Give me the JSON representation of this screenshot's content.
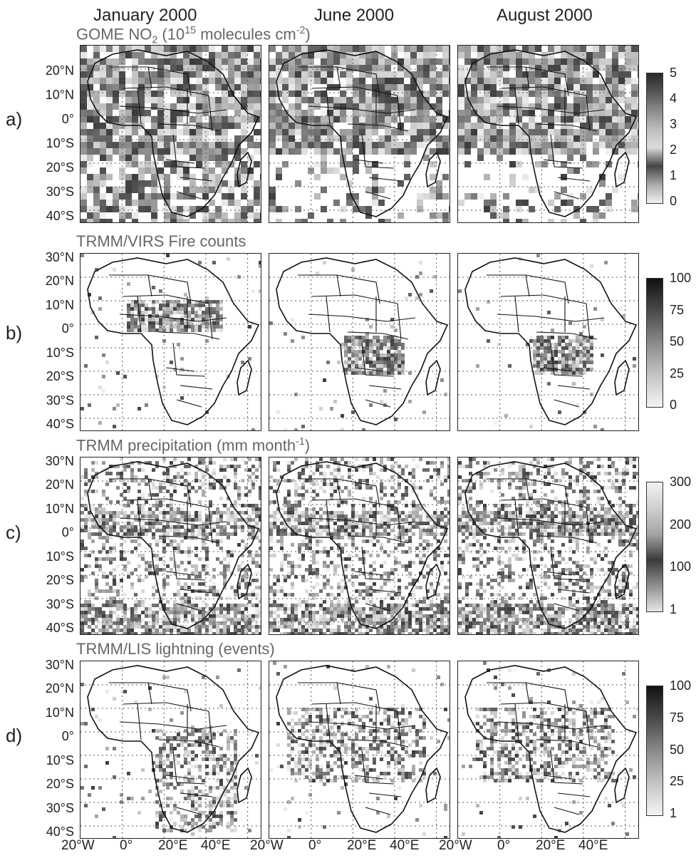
{
  "columns": [
    "January 2000",
    "June 2000",
    "August 2000"
  ],
  "rows": [
    {
      "label": "a)",
      "title_parts": [
        "GOME NO",
        "2",
        " (10",
        "15",
        " molecules cm",
        "-2",
        ")"
      ],
      "ylabels": [
        "20°N",
        "10°N",
        "0°",
        "10°S",
        "20°S",
        "30°S",
        "40°S"
      ],
      "colorbar_ticks": [
        "5",
        "4",
        "3",
        "2",
        "1",
        "0"
      ],
      "colorbar": [
        "#2a2a2a",
        "#555555",
        "#8a8a8a",
        "#bdbdbd",
        "#dcdcdc",
        "#444444",
        "#aaaaaa",
        "#f2f2f2"
      ]
    },
    {
      "label": "b)",
      "title": "TRMM/VIRS Fire counts",
      "ylabels": [
        "30°N",
        "20°N",
        "10°N",
        "0°",
        "10°S",
        "20°S",
        "30°S",
        "40°S"
      ],
      "colorbar_ticks": [
        "100",
        "75",
        "50",
        "25",
        "0"
      ],
      "colorbar": [
        "#111111",
        "#4a4a4a",
        "#8a8a8a",
        "#c4c4c4",
        "#f4f4f4"
      ]
    },
    {
      "label": "c)",
      "title_parts": [
        "TRMM precipitation (mm month",
        "-1",
        ")"
      ],
      "ylabels": [
        "30°N",
        "20°N",
        "10°N",
        "0°",
        "10°S",
        "20°S",
        "30°S",
        "40°S"
      ],
      "colorbar_ticks": [
        "300",
        "200",
        "100",
        "1"
      ],
      "colorbar": [
        "#f2f2f2",
        "#cfcfcf",
        "#a5a5a5",
        "#3a3a3a",
        "#8f8f8f",
        "#e6e6e6"
      ]
    },
    {
      "label": "d)",
      "title": "TRMM/LIS lightning (events)",
      "ylabels": [
        "30°N",
        "20°N",
        "10°N",
        "0°",
        "10°S",
        "20°S",
        "30°S",
        "40°S"
      ],
      "colorbar_ticks": [
        "100",
        "75",
        "50",
        "25",
        "1"
      ],
      "colorbar": [
        "#111111",
        "#4a4a4a",
        "#8a8a8a",
        "#c4c4c4",
        "#f4f4f4"
      ]
    }
  ],
  "xlabels": [
    "20°W",
    "0°",
    "20°E",
    "40°E"
  ],
  "colors": {
    "text": "#222222",
    "title_gray": "#666666",
    "coast": "#111111",
    "grid": "#555555"
  }
}
